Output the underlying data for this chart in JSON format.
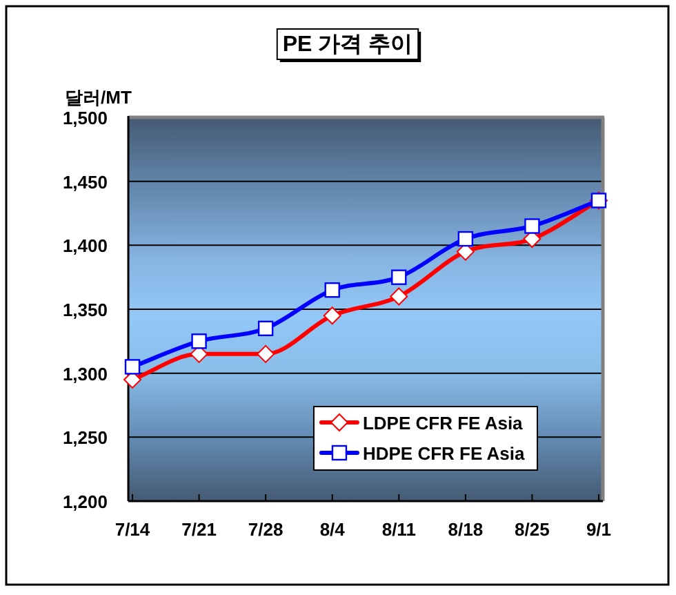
{
  "chart_data": {
    "type": "line",
    "title": "PE 가격 추이",
    "ylabel": "달러/MT",
    "categories": [
      "7/14",
      "7/21",
      "7/28",
      "8/4",
      "8/11",
      "8/18",
      "8/25",
      "9/1"
    ],
    "series": [
      {
        "name": "LDPE CFR FE Asia",
        "color": "#ff0000",
        "marker": "diamond",
        "values": [
          1295,
          1315,
          1315,
          1345,
          1360,
          1395,
          1405,
          1435
        ]
      },
      {
        "name": "HDPE CFR FE Asia",
        "color": "#0000ff",
        "marker": "square",
        "values": [
          1305,
          1325,
          1335,
          1365,
          1375,
          1405,
          1415,
          1435
        ]
      }
    ],
    "ylim": [
      1200,
      1500
    ],
    "yticks": [
      {
        "value": 1200,
        "label": "1,200"
      },
      {
        "value": 1250,
        "label": "1,250"
      },
      {
        "value": 1300,
        "label": "1,300"
      },
      {
        "value": 1350,
        "label": "1,350"
      },
      {
        "value": 1400,
        "label": "1,400"
      },
      {
        "value": 1450,
        "label": "1,450"
      },
      {
        "value": 1500,
        "label": "1,500"
      }
    ],
    "grid": "y",
    "legend": "bottom right",
    "line_style": "solid"
  }
}
